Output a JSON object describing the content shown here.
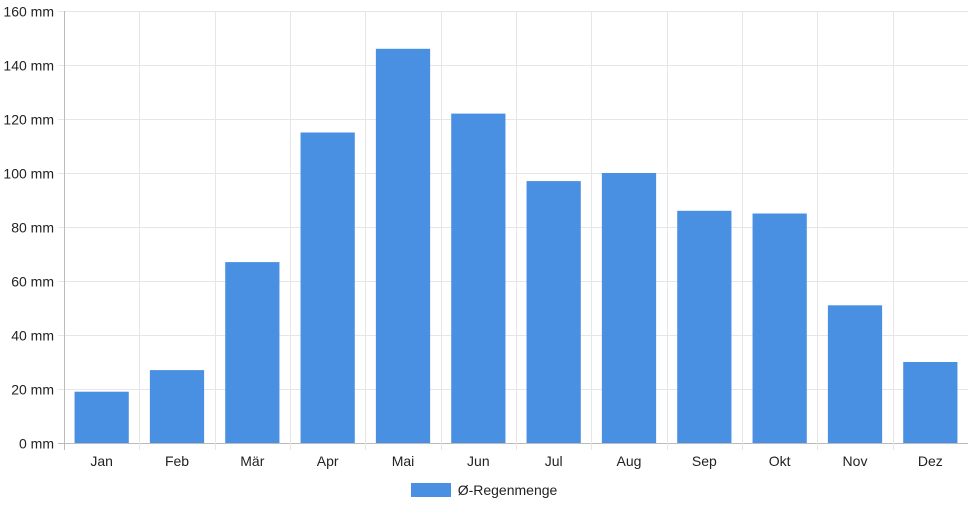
{
  "chart_data": {
    "type": "bar",
    "categories": [
      "Jan",
      "Feb",
      "Mär",
      "Apr",
      "Mai",
      "Jun",
      "Jul",
      "Aug",
      "Sep",
      "Okt",
      "Nov",
      "Dez"
    ],
    "series": [
      {
        "name": "Ø-Regenmenge",
        "color": "#4a90e2",
        "values": [
          19,
          27,
          67,
          115,
          146,
          122,
          97,
          100,
          86,
          85,
          51,
          30
        ]
      }
    ],
    "unit": "mm",
    "ylim": [
      0,
      160
    ],
    "yticks": [
      0,
      20,
      40,
      60,
      80,
      100,
      120,
      140,
      160
    ],
    "ytick_labels": [
      "0 mm",
      "20 mm",
      "40 mm",
      "60 mm",
      "80 mm",
      "100 mm",
      "120 mm",
      "140 mm",
      "160 mm"
    ],
    "grid": true,
    "legend_position": "bottom"
  },
  "legend": {
    "label": "Ø-Regenmenge",
    "color": "#4a90e2"
  }
}
